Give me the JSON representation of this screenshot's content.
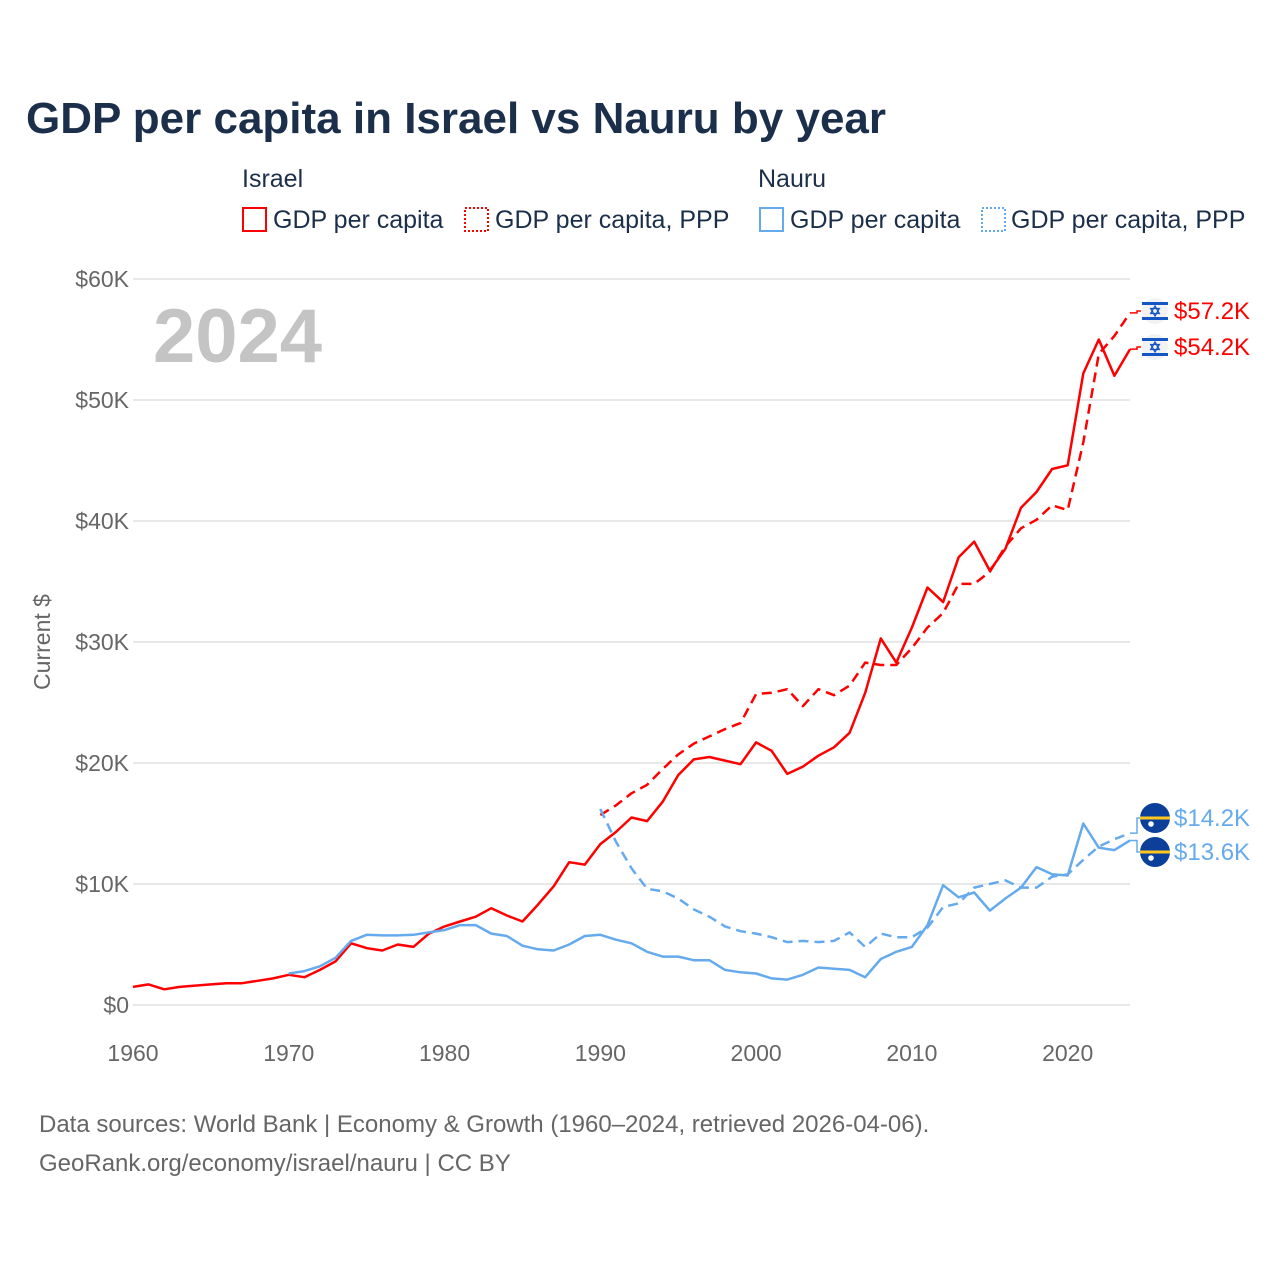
{
  "chart_data": {
    "type": "line",
    "title": "GDP per capita in Israel vs Nauru by year",
    "xlabel": "",
    "ylabel": "Current $",
    "xlim": [
      1960,
      2024
    ],
    "ylim": [
      0,
      60
    ],
    "x_ticks": [
      1960,
      1970,
      1980,
      1990,
      2000,
      2010,
      2020
    ],
    "y_ticks": [
      0,
      10,
      20,
      30,
      40,
      50,
      60
    ],
    "y_tick_labels": [
      "$0",
      "$10K",
      "$20K",
      "$30K",
      "$40K",
      "$50K",
      "$60K"
    ],
    "grid": true,
    "legend_placement": "top",
    "year_watermark": "2024",
    "legend_groups": [
      {
        "name": "Israel",
        "items": [
          "GDP per capita",
          "GDP per capita, PPP"
        ]
      },
      {
        "name": "Nauru",
        "items": [
          "GDP per capita",
          "GDP per capita, PPP"
        ]
      }
    ],
    "series": [
      {
        "name": "Israel GDP per capita",
        "country": "Israel",
        "color": "#ff0000",
        "dash": false,
        "start": 1960,
        "end_label": "$54.2K",
        "values": [
          1.5,
          1.7,
          1.3,
          1.5,
          1.6,
          1.7,
          1.8,
          1.8,
          2.0,
          2.2,
          2.5,
          2.3,
          2.9,
          3.6,
          5.1,
          4.7,
          4.5,
          5.0,
          4.8,
          5.9,
          6.5,
          6.9,
          7.3,
          8.0,
          7.4,
          6.9,
          8.3,
          9.8,
          11.8,
          11.6,
          13.3,
          14.3,
          15.5,
          15.2,
          16.8,
          19.0,
          20.3,
          20.5,
          20.2,
          19.9,
          21.7,
          21.0,
          19.1,
          19.7,
          20.6,
          21.3,
          22.5,
          25.8,
          30.3,
          28.3,
          31.2,
          34.5,
          33.3,
          37.0,
          38.3,
          35.9,
          37.7,
          41.1,
          42.4,
          44.3,
          44.6,
          52.2,
          55.0,
          52.0,
          54.2
        ]
      },
      {
        "name": "Israel GDP per capita, PPP",
        "country": "Israel",
        "color": "#ff0000",
        "dash": true,
        "start": 1990,
        "end_label": "$57.2K",
        "values": [
          15.7,
          16.5,
          17.5,
          18.2,
          19.5,
          20.7,
          21.6,
          22.2,
          22.8,
          23.3,
          25.7,
          25.8,
          26.1,
          24.7,
          26.1,
          25.6,
          26.4,
          28.3,
          28.1,
          28.1,
          29.5,
          31.2,
          32.4,
          34.8,
          34.8,
          35.8,
          37.9,
          39.4,
          40.1,
          41.3,
          40.9,
          46.5,
          53.8,
          55.3,
          57.2
        ]
      },
      {
        "name": "Nauru GDP per capita",
        "country": "Nauru",
        "color": "#66aaee",
        "dash": false,
        "start": 1970,
        "end_label": "$13.6K",
        "values": [
          2.6,
          2.8,
          3.2,
          3.9,
          5.3,
          5.8,
          5.75,
          5.75,
          5.8,
          6.0,
          6.2,
          6.6,
          6.6,
          5.9,
          5.7,
          4.9,
          4.6,
          4.5,
          5.0,
          5.7,
          5.8,
          5.4,
          5.1,
          4.4,
          4.0,
          4.0,
          3.7,
          3.7,
          2.9,
          2.7,
          2.6,
          2.2,
          2.1,
          2.5,
          3.1,
          3.0,
          2.9,
          2.3,
          3.8,
          4.4,
          4.8,
          6.6,
          9.9,
          8.9,
          9.3,
          7.8,
          8.8,
          9.7,
          11.4,
          10.8,
          10.7,
          15.0,
          13.0,
          12.8,
          13.6
        ]
      },
      {
        "name": "Nauru GDP per capita, PPP",
        "country": "Nauru",
        "color": "#66aaee",
        "dash": true,
        "start": 1990,
        "end_label": "$14.2K",
        "values": [
          16.2,
          13.5,
          11.3,
          9.6,
          9.4,
          8.8,
          7.9,
          7.3,
          6.5,
          6.1,
          5.9,
          5.6,
          5.2,
          5.3,
          5.2,
          5.3,
          6.0,
          4.8,
          5.9,
          5.6,
          5.6,
          6.4,
          8.1,
          8.4,
          9.7,
          10.0,
          10.3,
          9.7,
          9.7,
          10.6,
          10.8,
          12.0,
          13.1,
          13.7,
          14.2
        ]
      }
    ],
    "source_lines": [
      "Data sources: World Bank | Economy & Growth (1960–2024, retrieved 2026-04-06).",
      "GeoRank.org/economy/israel/nauru | CC BY"
    ]
  }
}
